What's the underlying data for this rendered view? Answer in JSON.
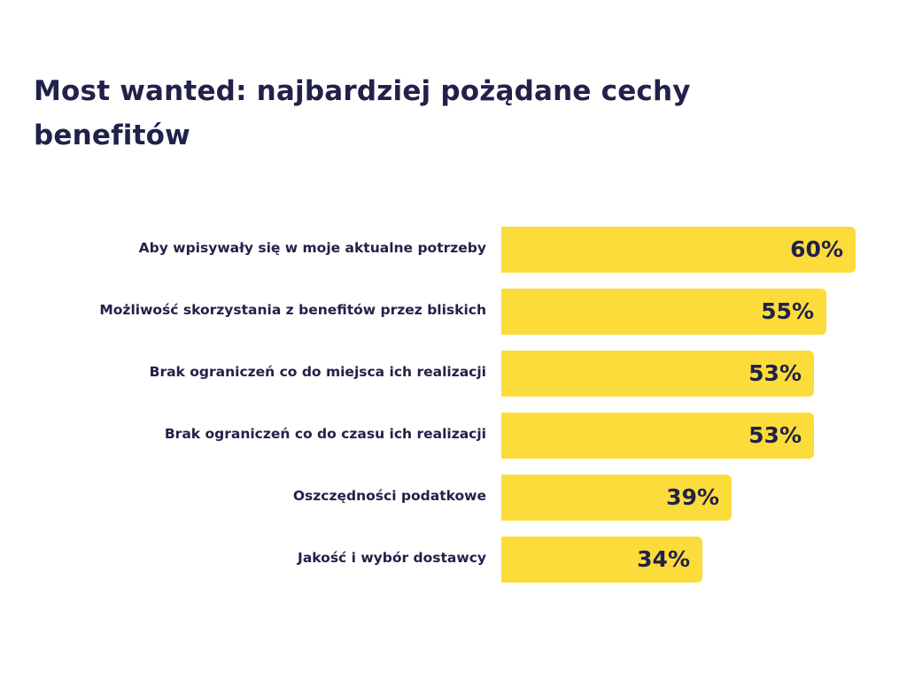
{
  "title": "Most wanted: najbardziej pożądane cechy benefitów",
  "colors": {
    "bar": "#fcdc3a",
    "text": "#22214a",
    "background": "#ffffff"
  },
  "chart_data": {
    "type": "bar",
    "orientation": "horizontal",
    "title": "Most wanted: najbardziej pożądane cechy benefitów",
    "categories": [
      "Aby wpisywały się w moje aktualne potrzeby",
      "Możliwość skorzystania z benefitów przez bliskich",
      "Brak ograniczeń co do miejsca ich realizacji",
      "Brak ograniczeń co do czasu ich realizacji",
      "Oszczędności podatkowe",
      "Jakość i wybór dostawcy"
    ],
    "values": [
      60,
      55,
      53,
      53,
      39,
      34
    ],
    "value_labels": [
      "60%",
      "55%",
      "53%",
      "53%",
      "39%",
      "34%"
    ],
    "unit": "%",
    "grid": false,
    "legend": "none",
    "xlabel": "",
    "ylabel": ""
  }
}
